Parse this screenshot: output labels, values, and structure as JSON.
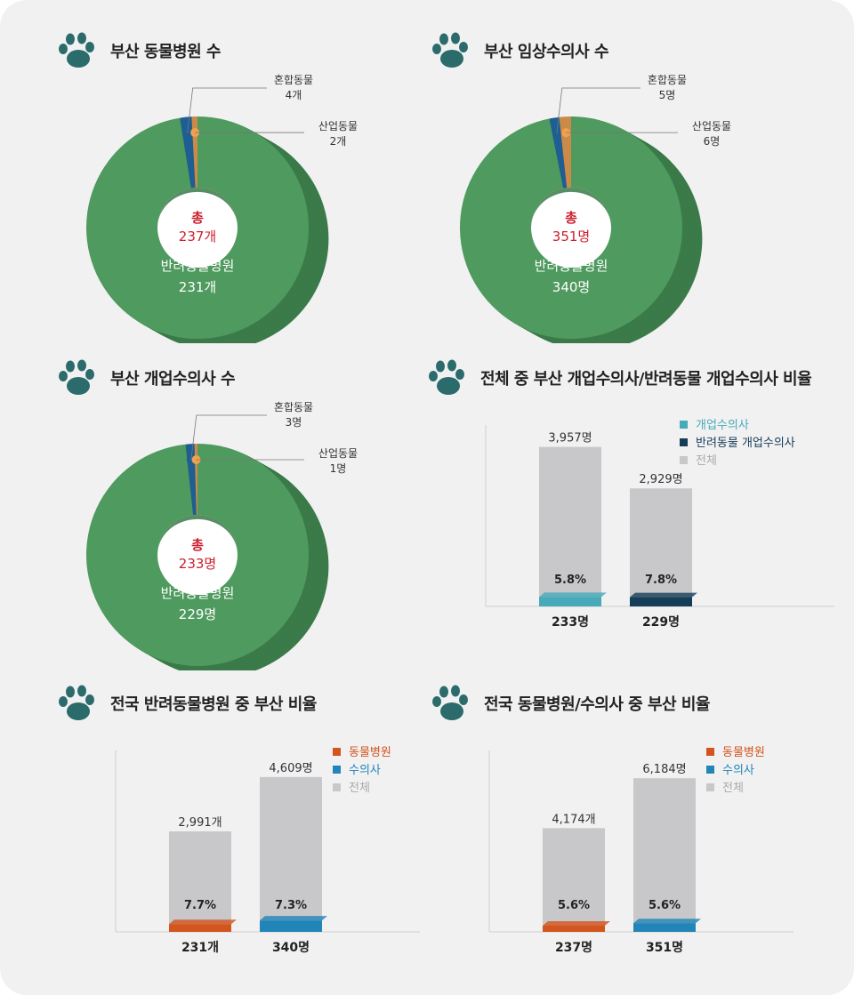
{
  "colors": {
    "donut_green": "#4f9a5e",
    "donut_green_dark": "#3b7a49",
    "donut_blue": "#1e5e93",
    "donut_orange": "#c98a4a",
    "paw": "#2b6b6b",
    "total_red": "#cc1e2c",
    "bar_gray": "#c8c8ca",
    "teal": "#46aab9",
    "navy": "#163d57",
    "orange_red": "#d3541c",
    "blue": "#2185b8"
  },
  "icons": {
    "paw": "paw-icon"
  },
  "panels": [
    {
      "title": "부산 동물병원 수",
      "chart_data": {
        "type": "pie",
        "title": "부산 동물병원 수",
        "total_prefix": "총",
        "total_label": "237개",
        "slices": [
          {
            "label": "반려동물병원",
            "value": 231,
            "value_label": "231개"
          },
          {
            "label": "혼합동물",
            "value": 4,
            "value_label": "4개"
          },
          {
            "label": "산업동물",
            "value": 2,
            "value_label": "2개"
          }
        ]
      }
    },
    {
      "title": "부산 임상수의사 수",
      "chart_data": {
        "type": "pie",
        "title": "부산 임상수의사 수",
        "total_prefix": "총",
        "total_label": "351명",
        "slices": [
          {
            "label": "반려동물병원",
            "value": 340,
            "value_label": "340명"
          },
          {
            "label": "혼합동물",
            "value": 5,
            "value_label": "5명"
          },
          {
            "label": "산업동물",
            "value": 6,
            "value_label": "6명"
          }
        ]
      }
    },
    {
      "title": "부산 개업수의사 수",
      "chart_data": {
        "type": "pie",
        "title": "부산 개업수의사 수",
        "total_prefix": "총",
        "total_label": "233명",
        "slices": [
          {
            "label": "반려동물병원",
            "value": 229,
            "value_label": "229명"
          },
          {
            "label": "혼합동물",
            "value": 3,
            "value_label": "3명"
          },
          {
            "label": "산업동물",
            "value": 1,
            "value_label": "1명"
          }
        ]
      }
    },
    {
      "title": "전체 중 부산 개업수의사/반려동물 개업수의사 비율",
      "chart_data": {
        "type": "bar",
        "title": "전체 중 부산 개업수의사/반려동물 개업수의사 비율",
        "legend": [
          {
            "label": "개업수의사",
            "color": "#46aab9"
          },
          {
            "label": "반려동물 개업수의사",
            "color": "#163d57"
          },
          {
            "label": "전체",
            "color": "#c8c8ca"
          }
        ],
        "legend_position": "top-right",
        "bars": [
          {
            "total": 3957,
            "total_label": "3,957명",
            "part": 233,
            "part_label": "233명",
            "pct_label": "5.8%",
            "color": "#46aab9"
          },
          {
            "total": 2929,
            "total_label": "2,929명",
            "part": 229,
            "part_label": "229명",
            "pct_label": "7.8%",
            "color": "#163d57"
          }
        ],
        "ymax": 4500
      }
    },
    {
      "title": "전국 반려동물병원 중 부산 비율",
      "chart_data": {
        "type": "bar",
        "title": "전국 반려동물병원 중 부산 비율",
        "legend": [
          {
            "label": "동물병원",
            "color": "#d3541c"
          },
          {
            "label": "수의사",
            "color": "#2185b8"
          },
          {
            "label": "전체",
            "color": "#c8c8ca"
          }
        ],
        "legend_position": "top-right",
        "bars": [
          {
            "total": 2991,
            "total_label": "2,991개",
            "part": 231,
            "part_label": "231개",
            "pct_label": "7.7%",
            "color": "#d3541c"
          },
          {
            "total": 4609,
            "total_label": "4,609명",
            "part": 340,
            "part_label": "340명",
            "pct_label": "7.3%",
            "color": "#2185b8"
          }
        ],
        "ymax": 5400
      }
    },
    {
      "title": "전국 동물병원/수의사 중 부산 비율",
      "chart_data": {
        "type": "bar",
        "title": "전국 동물병원/수의사 중 부산 비율",
        "legend": [
          {
            "label": "동물병원",
            "color": "#d3541c"
          },
          {
            "label": "수의사",
            "color": "#2185b8"
          },
          {
            "label": "전체",
            "color": "#c8c8ca"
          }
        ],
        "legend_position": "top-right",
        "bars": [
          {
            "total": 4174,
            "total_label": "4,174개",
            "part": 237,
            "part_label": "237명",
            "pct_label": "5.6%",
            "color": "#d3541c"
          },
          {
            "total": 6184,
            "total_label": "6,184명",
            "part": 351,
            "part_label": "351명",
            "pct_label": "5.6%",
            "color": "#2185b8"
          }
        ],
        "ymax": 7300
      }
    }
  ]
}
